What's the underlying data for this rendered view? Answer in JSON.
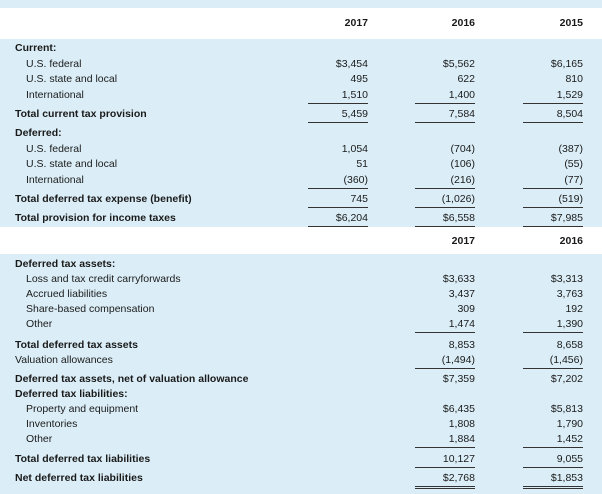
{
  "section1": {
    "years": [
      "2017",
      "2016",
      "2015"
    ],
    "current_heading": "Current:",
    "current_rows": [
      {
        "label": "U.S. federal",
        "values": [
          "$3,454",
          "$5,562",
          "$6,165"
        ]
      },
      {
        "label": "U.S. state and local",
        "values": [
          "495",
          "622",
          "810"
        ]
      },
      {
        "label": "International",
        "values": [
          "1,510",
          "1,400",
          "1,529"
        ]
      }
    ],
    "total_current": {
      "label": "Total current tax provision",
      "values": [
        "5,459",
        "7,584",
        "8,504"
      ]
    },
    "deferred_heading": "Deferred:",
    "deferred_rows": [
      {
        "label": "U.S. federal",
        "values": [
          "1,054",
          "(704)",
          "(387)"
        ]
      },
      {
        "label": "U.S. state and local",
        "values": [
          "51",
          "(106)",
          "(55)"
        ]
      },
      {
        "label": "International",
        "values": [
          "(360)",
          "(216)",
          "(77)"
        ]
      }
    ],
    "total_deferred": {
      "label": "Total deferred tax expense (benefit)",
      "values": [
        "745",
        "(1,026)",
        "(519)"
      ]
    },
    "total_provision": {
      "label": "Total provision for income taxes",
      "values": [
        "$6,204",
        "$6,558",
        "$7,985"
      ]
    }
  },
  "section2": {
    "years": [
      "2017",
      "2016"
    ],
    "assets_heading": "Deferred tax assets:",
    "asset_rows": [
      {
        "label": "Loss and tax credit carryforwards",
        "values": [
          "$3,633",
          "$3,313"
        ]
      },
      {
        "label": "Accrued liabilities",
        "values": [
          "3,437",
          "3,763"
        ]
      },
      {
        "label": "Share-based compensation",
        "values": [
          "309",
          "192"
        ]
      },
      {
        "label": "Other",
        "values": [
          "1,474",
          "1,390"
        ]
      }
    ],
    "total_assets": {
      "label": "Total deferred tax assets",
      "values": [
        "8,853",
        "8,658"
      ]
    },
    "valuation": {
      "label": "Valuation allowances",
      "values": [
        "(1,494)",
        "(1,456)"
      ]
    },
    "net_assets": {
      "label": "Deferred tax assets, net of valuation allowance",
      "values": [
        "$7,359",
        "$7,202"
      ]
    },
    "liabilities_heading": "Deferred tax liabilities:",
    "liability_rows": [
      {
        "label": "Property and equipment",
        "values": [
          "$6,435",
          "$5,813"
        ]
      },
      {
        "label": "Inventories",
        "values": [
          "1,808",
          "1,790"
        ]
      },
      {
        "label": "Other",
        "values": [
          "1,884",
          "1,452"
        ]
      }
    ],
    "total_liabilities": {
      "label": "Total deferred tax liabilities",
      "values": [
        "10,127",
        "9,055"
      ]
    },
    "net_liabilities": {
      "label": "Net deferred tax liabilities",
      "values": [
        "$2,768",
        "$1,853"
      ]
    }
  }
}
